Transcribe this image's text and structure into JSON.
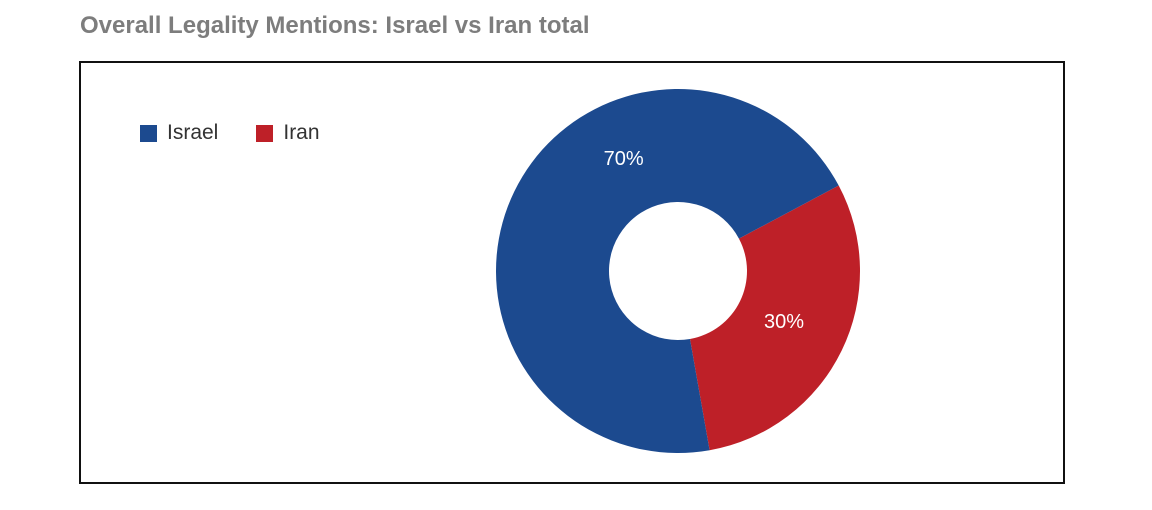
{
  "chart_data": {
    "type": "pie",
    "title": "Overall Legality Mentions: Israel vs Iran total",
    "categories": [
      "Israel",
      "Iran"
    ],
    "values": [
      70,
      30
    ],
    "labels": [
      "70%",
      "30%"
    ],
    "colors": [
      "#1c4a8f",
      "#be2028"
    ],
    "donut": true,
    "legend_position": "top-left"
  }
}
